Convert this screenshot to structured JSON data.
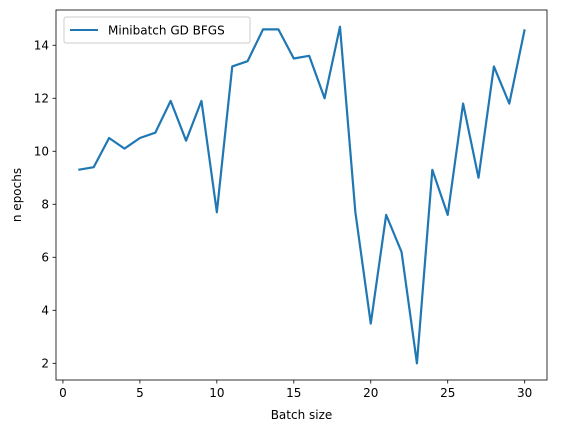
{
  "chart_data": {
    "type": "line",
    "xlabel": "Batch size",
    "ylabel": "n epochs",
    "xlim": [
      -0.45,
      31.45
    ],
    "ylim": [
      1.37,
      15.33
    ],
    "xticks": [
      0,
      5,
      10,
      15,
      20,
      25,
      30
    ],
    "yticks": [
      2,
      4,
      6,
      8,
      10,
      12,
      14
    ],
    "grid": false,
    "legend": {
      "position": "top-left"
    },
    "series": [
      {
        "name": "Minibatch GD BFGS",
        "color": "#1f77b4",
        "x": [
          1,
          2,
          3,
          4,
          5,
          6,
          7,
          8,
          9,
          10,
          11,
          12,
          13,
          14,
          15,
          16,
          17,
          18,
          19,
          20,
          21,
          22,
          23,
          24,
          25,
          26,
          27,
          28,
          29,
          30
        ],
        "y": [
          9.3,
          9.4,
          10.5,
          10.1,
          10.5,
          10.7,
          11.9,
          10.4,
          11.9,
          7.7,
          13.2,
          13.4,
          14.6,
          14.6,
          13.5,
          13.6,
          12.0,
          14.7,
          7.7,
          3.5,
          7.6,
          6.2,
          2.0,
          9.3,
          7.6,
          11.8,
          9.0,
          13.2,
          11.8,
          14.6
        ]
      }
    ]
  }
}
